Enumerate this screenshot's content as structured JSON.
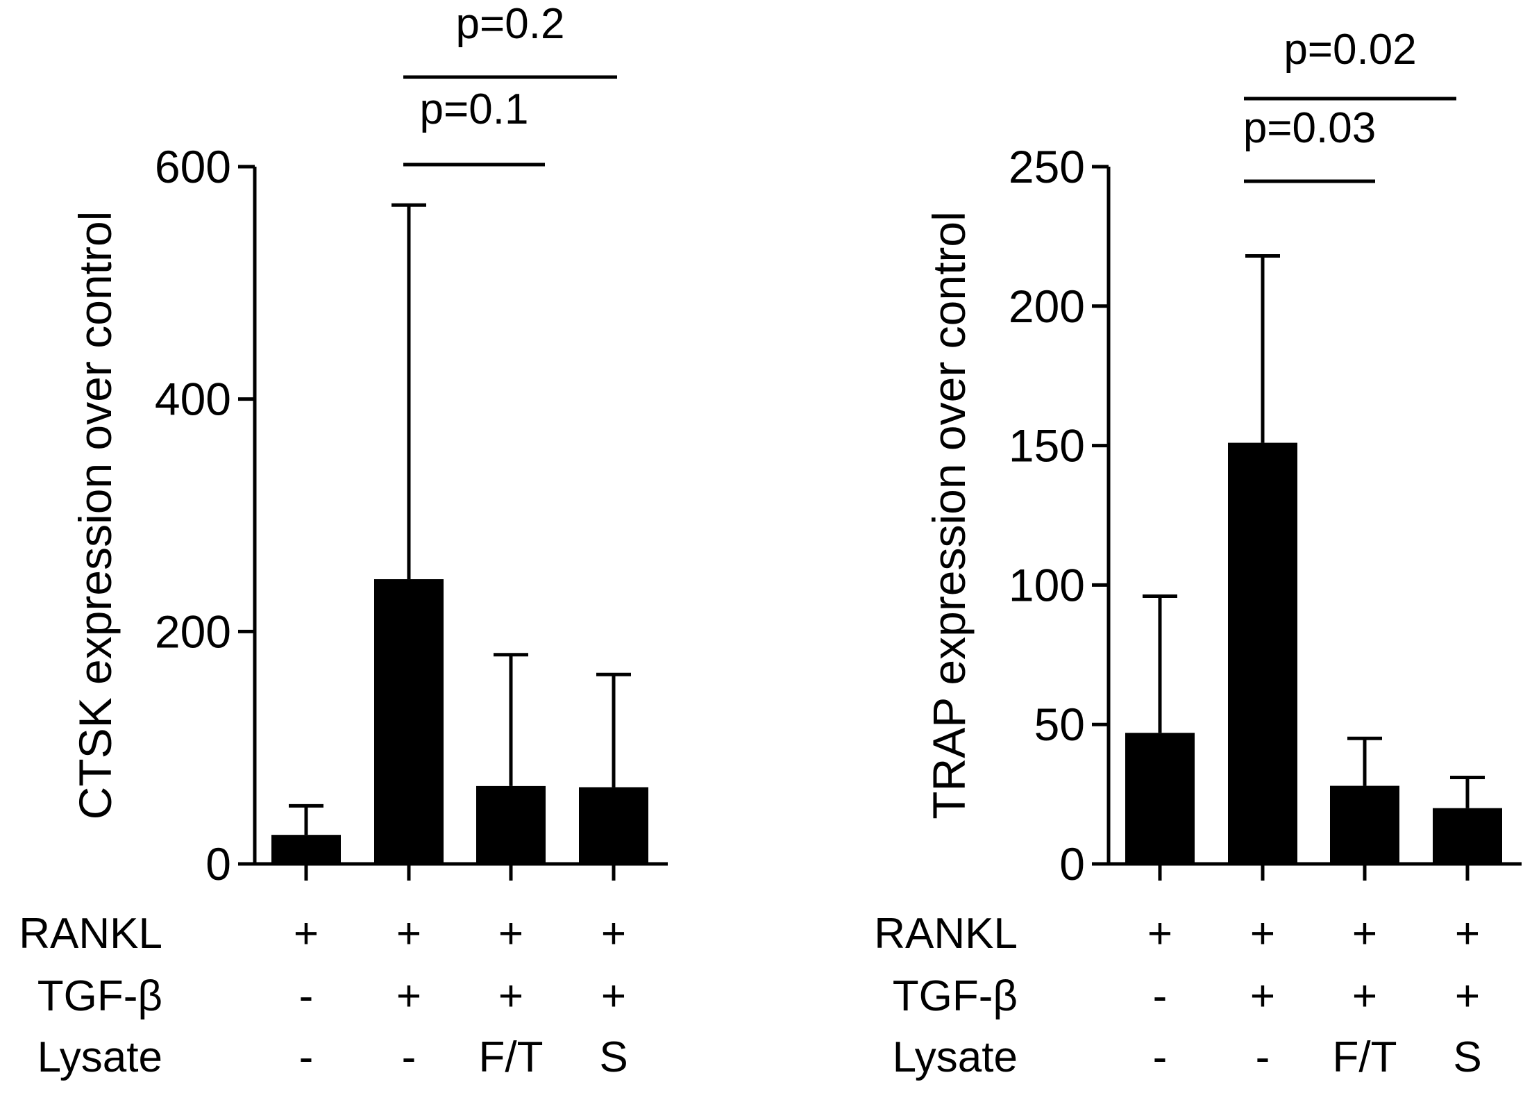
{
  "chart_data": [
    {
      "type": "bar",
      "ylabel": "CTSK expression over control",
      "ylim": [
        0,
        600
      ],
      "yticks": [
        0,
        200,
        400,
        600
      ],
      "bar_color": "#000000",
      "error_bars": "upper",
      "values": [
        25,
        245,
        67,
        66
      ],
      "errors_upper": [
        50,
        567,
        180,
        163
      ],
      "conditions": [
        {
          "label": "RANKL",
          "values": [
            "+",
            "+",
            "+",
            "+"
          ]
        },
        {
          "label": "TGF-β",
          "values": [
            "-",
            "+",
            "+",
            "+"
          ]
        },
        {
          "label": "Lysate",
          "values": [
            "-",
            "-",
            "F/T",
            "S"
          ]
        }
      ],
      "comparisons": [
        {
          "label": "p=0.1",
          "from": 1,
          "to": 2
        },
        {
          "label": "p=0.2",
          "from": 1,
          "to": 3
        }
      ]
    },
    {
      "type": "bar",
      "ylabel": "TRAP expression over control",
      "ylim": [
        0,
        250
      ],
      "yticks": [
        0,
        50,
        100,
        150,
        200,
        250
      ],
      "bar_color": "#000000",
      "error_bars": "upper",
      "values": [
        47,
        151,
        28,
        20
      ],
      "errors_upper": [
        96,
        218,
        45,
        31
      ],
      "conditions": [
        {
          "label": "RANKL",
          "values": [
            "+",
            "+",
            "+",
            "+"
          ]
        },
        {
          "label": "TGF-β",
          "values": [
            "-",
            "+",
            "+",
            "+"
          ]
        },
        {
          "label": "Lysate",
          "values": [
            "-",
            "-",
            "F/T",
            "S"
          ]
        }
      ],
      "comparisons": [
        {
          "label": "p=0.03",
          "from": 1,
          "to": 2
        },
        {
          "label": "p=0.02",
          "from": 1,
          "to": 3
        }
      ]
    }
  ]
}
